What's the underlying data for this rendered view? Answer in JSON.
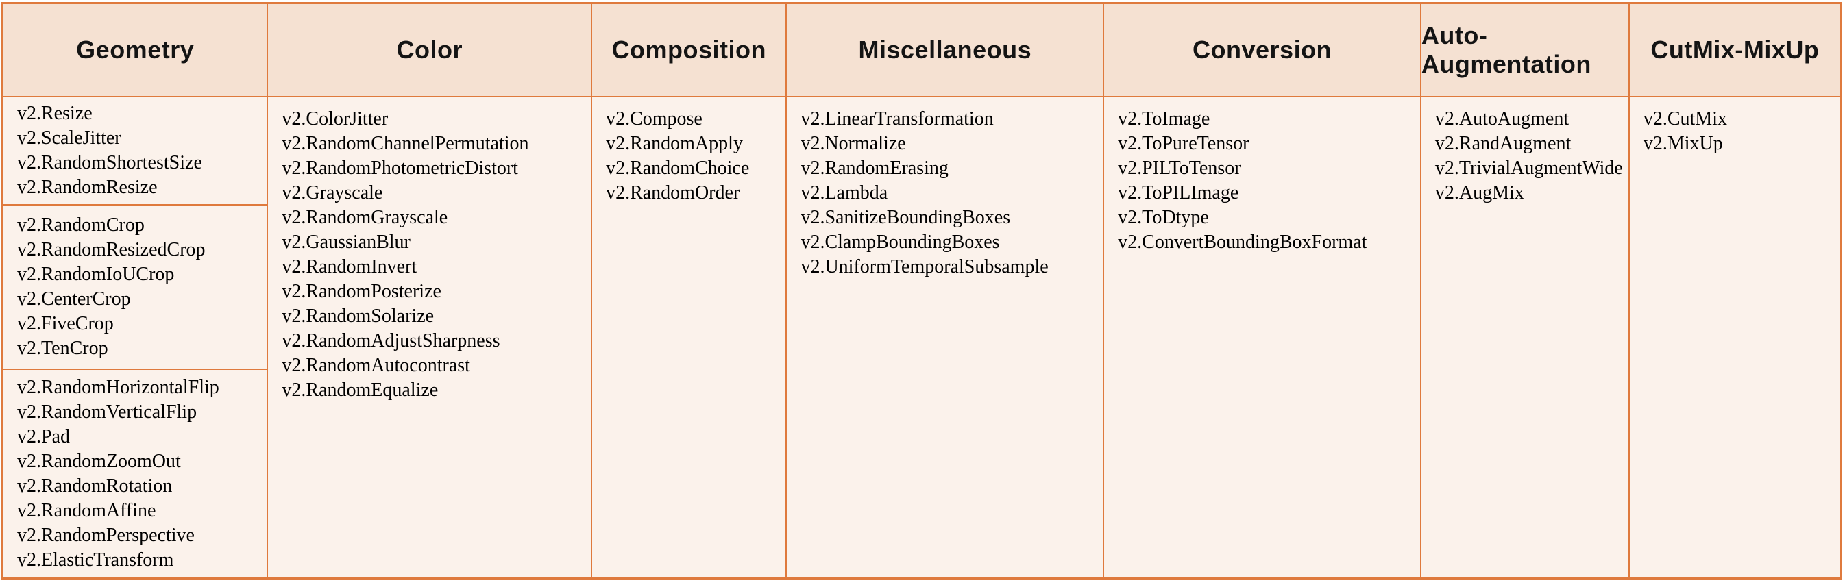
{
  "colors": {
    "border": "#DF7A3D",
    "header_bg": "#F5E1D2",
    "body_bg": "#FBF2EB"
  },
  "columns": [
    {
      "header": "Geometry",
      "sections": [
        [
          "v2.Resize",
          "v2.ScaleJitter",
          "v2.RandomShortestSize",
          "v2.RandomResize"
        ],
        [
          "v2.RandomCrop",
          "v2.RandomResizedCrop",
          "v2.RandomIoUCrop",
          "v2.CenterCrop",
          "v2.FiveCrop",
          "v2.TenCrop"
        ],
        [
          "v2.RandomHorizontalFlip",
          "v2.RandomVerticalFlip",
          "v2.Pad",
          "v2.RandomZoomOut",
          "v2.RandomRotation",
          "v2.RandomAffine",
          "v2.RandomPerspective",
          "v2.ElasticTransform"
        ]
      ]
    },
    {
      "header": "Color",
      "sections": [
        [
          "v2.ColorJitter",
          "v2.RandomChannelPermutation",
          "v2.RandomPhotometricDistort",
          "v2.Grayscale",
          "v2.RandomGrayscale",
          "v2.GaussianBlur",
          "v2.RandomInvert",
          "v2.RandomPosterize",
          "v2.RandomSolarize",
          "v2.RandomAdjustSharpness",
          "v2.RandomAutocontrast",
          "v2.RandomEqualize"
        ]
      ]
    },
    {
      "header": "Composition",
      "sections": [
        [
          "v2.Compose",
          "v2.RandomApply",
          "v2.RandomChoice",
          "v2.RandomOrder"
        ]
      ]
    },
    {
      "header": "Miscellaneous",
      "sections": [
        [
          "v2.LinearTransformation",
          "v2.Normalize",
          "v2.RandomErasing",
          "v2.Lambda",
          "v2.SanitizeBoundingBoxes",
          "v2.ClampBoundingBoxes",
          "v2.UniformTemporalSubsample"
        ]
      ]
    },
    {
      "header": "Conversion",
      "sections": [
        [
          "v2.ToImage",
          "v2.ToPureTensor",
          "v2.PILToTensor",
          "v2.ToPILImage",
          "v2.ToDtype",
          "v2.ConvertBoundingBoxFormat"
        ]
      ]
    },
    {
      "header": "Auto-Augmentation",
      "sections": [
        [
          "v2.AutoAugment",
          "v2.RandAugment",
          "v2.TrivialAugmentWide",
          "v2.AugMix"
        ]
      ]
    },
    {
      "header": "CutMix-MixUp",
      "sections": [
        [
          "v2.CutMix",
          "v2.MixUp"
        ]
      ]
    }
  ]
}
